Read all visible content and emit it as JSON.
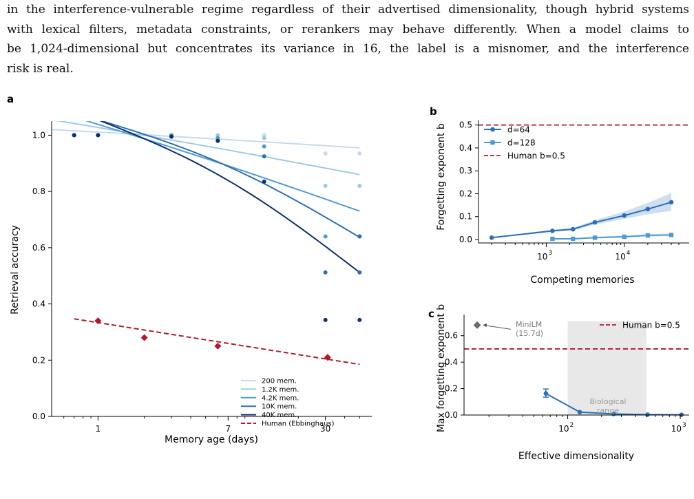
{
  "paragraph": {
    "lines": [
      "in the interference-vulnerable regime regardless of their advertised dimensionality, though hybrid systems",
      "with lexical filters, metadata constraints, or rerankers may behave differently. When a model claims to",
      "be 1,024-dimensional but concentrates its variance in 16, the label is a misnomer, and the interference",
      "risk is real."
    ]
  },
  "figure": {
    "panels": [
      {
        "id": "a",
        "label": "a",
        "xlabel": "Memory age (days)",
        "ylabel": "Retrieval accuracy",
        "x_ticks": [
          "1",
          "7",
          "30"
        ],
        "y_ticks": [
          "0.0",
          "0.2",
          "0.4",
          "0.6",
          "0.8",
          "1.0"
        ],
        "legend": [
          {
            "name": "200 mem.",
            "color": "#c6dbef"
          },
          {
            "name": "1.2K mem.",
            "color": "#9ecae1"
          },
          {
            "name": "4.2K mem.",
            "color": "#4f9bd0"
          },
          {
            "name": "10K mem.",
            "color": "#2b6fb5"
          },
          {
            "name": "40K mem.",
            "color": "#0b2e6e"
          },
          {
            "name": "Human (Ebbinghaus)",
            "color": "#b2182b"
          }
        ]
      },
      {
        "id": "b",
        "label": "b",
        "xlabel": "Competing memories",
        "ylabel": "Forgetting exponent b",
        "x_ticks": [
          "10",
          "3",
          "10",
          "4"
        ],
        "y_ticks": [
          "0.0",
          "0.1",
          "0.2",
          "0.3",
          "0.4",
          "0.5"
        ],
        "legend": [
          {
            "name": "d=64",
            "color": "#2b6fb5"
          },
          {
            "name": "d=128",
            "color": "#4f9bd0"
          },
          {
            "name": "Human b=0.5",
            "color": "#b2182b"
          }
        ]
      },
      {
        "id": "c",
        "label": "c",
        "xlabel": "Effective dimensionality",
        "ylabel": "Max forgetting exponent b",
        "x_ticks": [
          "10",
          "2",
          "10",
          "3"
        ],
        "y_ticks": [
          "0.0",
          "0.2",
          "0.4",
          "0.6"
        ],
        "legend": [
          {
            "name": "Human b=0.5",
            "color": "#b2182b"
          }
        ],
        "annotations": {
          "minilm_name": "MiniLM",
          "minilm_dim": "(15.7d)",
          "bio_line1": "Biological",
          "bio_line2": "range"
        }
      }
    ]
  },
  "chart_data": [
    {
      "type": "line",
      "panel": "a",
      "xlabel": "Memory age (days)",
      "ylabel": "Retrieval accuracy",
      "x_scale": "log",
      "xlim": [
        0.5,
        60
      ],
      "ylim": [
        0,
        1.05
      ],
      "grid": false,
      "legend_position": "lower-right",
      "series": [
        {
          "name": "200 mem.",
          "color": "#c6dbef",
          "x": [
            0.7,
            1,
            3,
            6,
            12,
            30,
            50
          ],
          "y": [
            1.0,
            1.0,
            1.0,
            1.0,
            1.0,
            0.935,
            0.935
          ],
          "fit_x": [
            0.5,
            50
          ],
          "fit_y": [
            1.02,
            0.955
          ]
        },
        {
          "name": "1.2K mem.",
          "color": "#9ecae1",
          "x": [
            0.7,
            1,
            3,
            6,
            12,
            30,
            50
          ],
          "y": [
            1.0,
            1.0,
            1.0,
            1.0,
            0.99,
            0.82,
            0.82
          ],
          "fit_x": [
            0.5,
            50
          ],
          "fit_y": [
            1.055,
            0.86
          ]
        },
        {
          "name": "4.2K mem.",
          "color": "#4f9bd0",
          "x": [
            0.7,
            1,
            3,
            6,
            12,
            30,
            50
          ],
          "y": [
            1.0,
            1.0,
            1.0,
            0.99,
            0.96,
            0.64,
            0.64
          ],
          "fit_x": [
            0.8,
            50
          ],
          "fit_y": [
            1.055,
            0.73
          ]
        },
        {
          "name": "10K mem.",
          "color": "#2b6fb5",
          "x": [
            0.7,
            1,
            3,
            6,
            12,
            30,
            50
          ],
          "y": [
            1.0,
            1.0,
            0.995,
            0.98,
            0.925,
            0.512,
            0.64
          ],
          "fit_x": [
            1,
            50
          ],
          "fit_y": [
            1.055,
            0.637
          ]
        },
        {
          "name": "40K mem.",
          "color": "#0b2e6e",
          "x": [
            0.7,
            1,
            3,
            6,
            12,
            30,
            50
          ],
          "y": [
            1.0,
            1.0,
            0.995,
            0.98,
            0.835,
            0.343,
            0.343
          ],
          "fit_x": [
            1,
            50
          ],
          "fit_y": [
            1.055,
            0.512
          ]
        },
        {
          "name": "Human (Ebbinghaus)",
          "color": "#b2182b",
          "style": "dashed",
          "x": [
            1,
            2,
            6,
            31
          ],
          "y": [
            0.34,
            0.28,
            0.25,
            0.21
          ],
          "fit_x": [
            0.7,
            50
          ],
          "fit_y": [
            0.347,
            0.185
          ]
        }
      ],
      "extra_points": [
        {
          "x": 50,
          "y": 0.512,
          "color": "#2b6fb5"
        }
      ]
    },
    {
      "type": "line",
      "panel": "b",
      "xlabel": "Competing memories",
      "ylabel": "Forgetting exponent b",
      "x_scale": "log",
      "xlim": [
        150,
        60000
      ],
      "ylim": [
        -0.015,
        0.52
      ],
      "legend_position": "top-left",
      "series": [
        {
          "name": "d=64",
          "color": "#2b6fb5",
          "marker": "circle",
          "x": [
            200,
            1200,
            2200,
            4200,
            10000,
            20000,
            40000
          ],
          "y": [
            0.008,
            0.038,
            0.045,
            0.075,
            0.105,
            0.133,
            0.163
          ],
          "band_low": [
            0.006,
            0.033,
            0.04,
            0.065,
            0.09,
            0.11,
            0.125
          ],
          "band_high": [
            0.01,
            0.043,
            0.05,
            0.085,
            0.122,
            0.16,
            0.203
          ]
        },
        {
          "name": "d=128",
          "color": "#4f9bd0",
          "marker": "square",
          "x": [
            1200,
            2200,
            4200,
            10000,
            20000,
            40000
          ],
          "y": [
            0.003,
            0.003,
            0.008,
            0.012,
            0.018,
            0.02
          ],
          "band_low": [
            0.001,
            0.001,
            0.004,
            0.008,
            0.013,
            0.015
          ],
          "band_high": [
            0.005,
            0.005,
            0.012,
            0.017,
            0.024,
            0.026
          ]
        }
      ],
      "hlines": [
        {
          "name": "Human b=0.5",
          "y": 0.5,
          "color": "#b2182b"
        }
      ]
    },
    {
      "type": "line",
      "panel": "c",
      "xlabel": "Effective dimensionality",
      "ylabel": "Max forgetting exponent b",
      "x_scale": "log",
      "xlim": [
        12,
        1200
      ],
      "ylim": [
        0,
        0.76
      ],
      "legend_position": "top-right",
      "series": [
        {
          "name": "",
          "color": "#2b6fb5",
          "x": [
            64,
            128,
            256,
            512,
            1024
          ],
          "y": [
            0.163,
            0.022,
            0.008,
            0.003,
            0.002
          ],
          "err_low": [
            0.135,
            0.022,
            0.008,
            0.003,
            0.002
          ],
          "err_high": [
            0.197,
            0.022,
            0.008,
            0.003,
            0.002
          ]
        }
      ],
      "points": [
        {
          "name": "MiniLM",
          "x": 15.7,
          "y": 0.68,
          "color": "#6b6b6b",
          "marker": "diamond"
        }
      ],
      "hlines": [
        {
          "name": "Human b=0.5",
          "y": 0.5,
          "color": "#b2182b"
        }
      ],
      "spans": [
        {
          "x0": 100,
          "x1": 500,
          "name": "Biological range",
          "color": "#e8e8e8"
        }
      ]
    }
  ]
}
